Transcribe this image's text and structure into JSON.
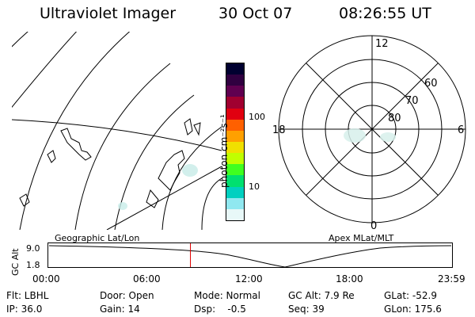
{
  "header": {
    "instrument": "Ultraviolet Imager",
    "date": "30 Oct 07",
    "time": "08:26:55 UT"
  },
  "colorbar": {
    "unit_label": "photon cm⁻²s⁻¹",
    "tick_labels": [
      "100",
      "10"
    ],
    "colors": [
      "#000030",
      "#300040",
      "#600050",
      "#a00030",
      "#e00010",
      "#ff6000",
      "#ffa000",
      "#f0e000",
      "#c0ff00",
      "#40ff20",
      "#00e070",
      "#00d0c0",
      "#90e8f0",
      "#e8f8f8"
    ]
  },
  "left_map": {
    "label": "Geographic Lat/Lon"
  },
  "polar_plot": {
    "label": "Apex MLat/MLT",
    "mlt_labels": {
      "top": "12",
      "left": "18",
      "right": "6",
      "bottom": "0"
    },
    "mlat_labels": [
      "60",
      "70",
      "80"
    ]
  },
  "altitude_strip": {
    "axis_label": "GC Alt",
    "y_ticks": [
      "9.0",
      "1.8"
    ],
    "x_ticks": [
      "00:00",
      "06:00",
      "12:00",
      "18:00",
      "23:59"
    ],
    "current_time_fraction": 0.352
  },
  "footer": {
    "row1": {
      "flt": "Flt: LBHL",
      "door": "Door: Open",
      "mode": "Mode: Normal",
      "gc_alt": "GC Alt: 7.9 Re",
      "glat": "GLat: -52.9"
    },
    "row2": {
      "ip": "IP: 36.0",
      "gain": "Gain: 14",
      "dsp": "Dsp:    -0.5",
      "seq": "Seq: 39",
      "glon": "GLon: 175.6"
    }
  }
}
